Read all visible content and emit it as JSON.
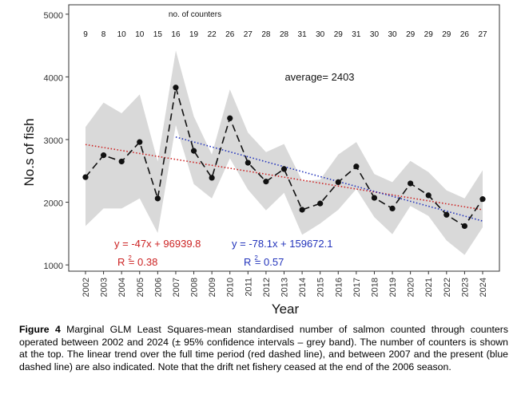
{
  "chart_data": {
    "type": "line",
    "title": "",
    "xlabel": "Year",
    "ylabel": "No.s of fish",
    "ylim": [
      1000,
      5000
    ],
    "yticks": [
      1000,
      2000,
      3000,
      4000,
      5000
    ],
    "grid": false,
    "x": [
      2002,
      2003,
      2004,
      2005,
      2006,
      2007,
      2008,
      2009,
      2010,
      2011,
      2012,
      2013,
      2014,
      2015,
      2016,
      2017,
      2018,
      2019,
      2020,
      2021,
      2022,
      2023,
      2024
    ],
    "series": [
      {
        "values": [
          2400,
          2750,
          2650,
          2960,
          2060,
          3830,
          2820,
          2390,
          3340,
          2630,
          2330,
          2530,
          1880,
          1980,
          2320,
          2570,
          2070,
          1900,
          2300,
          2110,
          1800,
          1620,
          2050
        ],
        "ci_lower": [
          1620,
          1900,
          1900,
          2060,
          1510,
          3230,
          2290,
          2060,
          2700,
          2200,
          1870,
          2150,
          1480,
          1660,
          1880,
          2210,
          1760,
          1490,
          1940,
          1780,
          1390,
          1160,
          1600
        ],
        "ci_upper": [
          3200,
          3590,
          3420,
          3720,
          2650,
          4420,
          3370,
          2760,
          3800,
          3110,
          2800,
          2930,
          2340,
          2360,
          2760,
          2960,
          2450,
          2320,
          2660,
          2480,
          2190,
          2060,
          2510
        ],
        "color": "#111111"
      }
    ],
    "counters_label": "no. of counters",
    "counters": [
      9,
      8,
      10,
      10,
      15,
      16,
      19,
      22,
      26,
      27,
      28,
      28,
      31,
      30,
      29,
      31,
      30,
      30,
      29,
      29,
      29,
      26,
      27
    ],
    "average_label": "average= 2403",
    "trend_lines": [
      {
        "equation": "y = -47x + 96939.8",
        "r2_prefix": "R",
        "r2_exp": "2",
        "r2_value": "= 0.38",
        "x_start": 2002,
        "y_start": 2920,
        "x_end": 2024,
        "y_end": 1880,
        "color": "#cc2222"
      },
      {
        "equation": "y = -78.1x + 159672.1",
        "r2_prefix": "R",
        "r2_exp": "2",
        "r2_value": "= 0.57",
        "x_start": 2007,
        "y_start": 3040,
        "x_end": 2024,
        "y_end": 1700,
        "color": "#2233bb"
      }
    ],
    "ci_color": "#d9d9d9"
  },
  "caption": {
    "label": "Figure 4",
    "text": " Marginal GLM Least Squares-mean standardised number of salmon counted through counters operated between 2002 and 2024 (± 95% confidence intervals – grey band). The number of counters is shown at the top. The linear trend over the full time period (red dashed line), and between 2007 and the present (blue dashed line) are also indicated. Note that the drift net fishery ceased at the end of the 2006 season."
  }
}
